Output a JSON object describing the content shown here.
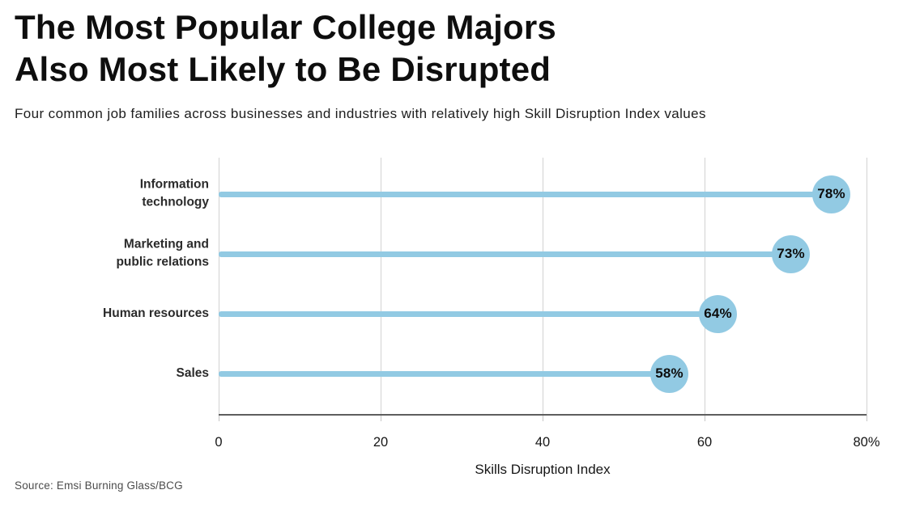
{
  "header": {
    "title": "The Most Popular College Majors\nAlso Most Likely to Be Disrupted",
    "subtitle": "Four common job families across businesses and industries with relatively high Skill Disruption Index values"
  },
  "chart_data": {
    "type": "bar",
    "subtype": "horizontal-lollipop",
    "categories": [
      "Information\ntechnology",
      "Marketing and\npublic relations",
      "Human resources",
      "Sales"
    ],
    "values": [
      78,
      73,
      64,
      58
    ],
    "value_labels": [
      "78%",
      "73%",
      "64%",
      "58%"
    ],
    "title": "The Most Popular College Majors Also Most Likely to Be Disrupted",
    "xlabel": "Skills Disruption Index",
    "ylabel": "",
    "xlim": [
      0,
      80
    ],
    "x_ticks": [
      0,
      20,
      40,
      60,
      80
    ],
    "x_tick_labels": [
      "0",
      "20",
      "40",
      "60",
      "80%"
    ],
    "grid": "vertical-gridlines-on",
    "legend": "none",
    "colors": {
      "lollipop_blue": "#92CAE3",
      "value_text": "#0d0d0d",
      "gridline": "#d2d2d2",
      "axis_line": "#5e5e5e",
      "title_text": "#0e0e0e",
      "category_text": "#2b2b2b"
    }
  },
  "footer": {
    "source": "Source: Emsi Burning Glass/BCG"
  }
}
